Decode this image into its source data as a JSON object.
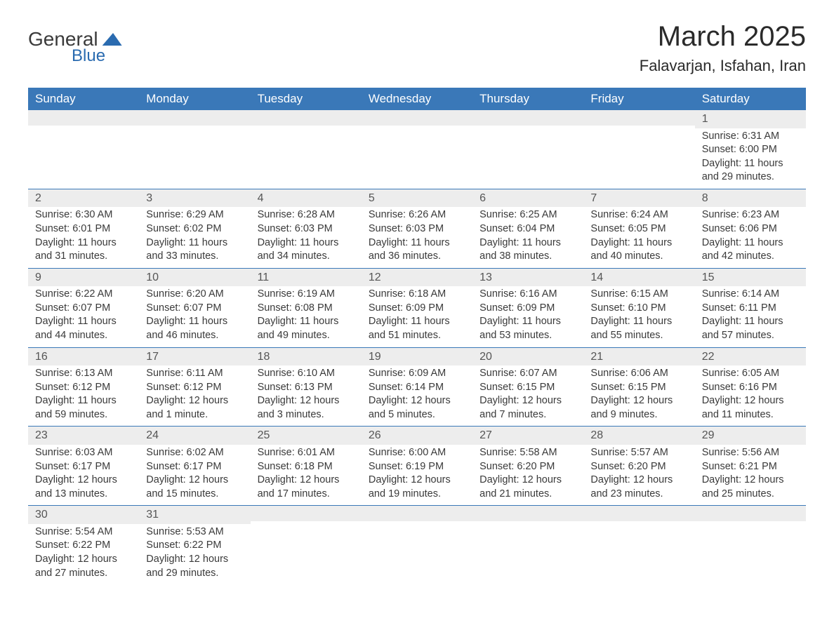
{
  "logo": {
    "top": "General",
    "bottom": "Blue"
  },
  "title": "March 2025",
  "location": "Falavarjan, Isfahan, Iran",
  "day_headers": [
    "Sunday",
    "Monday",
    "Tuesday",
    "Wednesday",
    "Thursday",
    "Friday",
    "Saturday"
  ],
  "colors": {
    "header_bg": "#3a78b8",
    "header_text": "#ffffff",
    "daynum_bg": "#ededed",
    "row_divider": "#3a78b8",
    "text": "#3a3a3a",
    "logo_blue": "#2a6bb0"
  },
  "weeks": [
    [
      {
        "day": "",
        "lines": []
      },
      {
        "day": "",
        "lines": []
      },
      {
        "day": "",
        "lines": []
      },
      {
        "day": "",
        "lines": []
      },
      {
        "day": "",
        "lines": []
      },
      {
        "day": "",
        "lines": []
      },
      {
        "day": "1",
        "lines": [
          "Sunrise: 6:31 AM",
          "Sunset: 6:00 PM",
          "Daylight: 11 hours and 29 minutes."
        ]
      }
    ],
    [
      {
        "day": "2",
        "lines": [
          "Sunrise: 6:30 AM",
          "Sunset: 6:01 PM",
          "Daylight: 11 hours and 31 minutes."
        ]
      },
      {
        "day": "3",
        "lines": [
          "Sunrise: 6:29 AM",
          "Sunset: 6:02 PM",
          "Daylight: 11 hours and 33 minutes."
        ]
      },
      {
        "day": "4",
        "lines": [
          "Sunrise: 6:28 AM",
          "Sunset: 6:03 PM",
          "Daylight: 11 hours and 34 minutes."
        ]
      },
      {
        "day": "5",
        "lines": [
          "Sunrise: 6:26 AM",
          "Sunset: 6:03 PM",
          "Daylight: 11 hours and 36 minutes."
        ]
      },
      {
        "day": "6",
        "lines": [
          "Sunrise: 6:25 AM",
          "Sunset: 6:04 PM",
          "Daylight: 11 hours and 38 minutes."
        ]
      },
      {
        "day": "7",
        "lines": [
          "Sunrise: 6:24 AM",
          "Sunset: 6:05 PM",
          "Daylight: 11 hours and 40 minutes."
        ]
      },
      {
        "day": "8",
        "lines": [
          "Sunrise: 6:23 AM",
          "Sunset: 6:06 PM",
          "Daylight: 11 hours and 42 minutes."
        ]
      }
    ],
    [
      {
        "day": "9",
        "lines": [
          "Sunrise: 6:22 AM",
          "Sunset: 6:07 PM",
          "Daylight: 11 hours and 44 minutes."
        ]
      },
      {
        "day": "10",
        "lines": [
          "Sunrise: 6:20 AM",
          "Sunset: 6:07 PM",
          "Daylight: 11 hours and 46 minutes."
        ]
      },
      {
        "day": "11",
        "lines": [
          "Sunrise: 6:19 AM",
          "Sunset: 6:08 PM",
          "Daylight: 11 hours and 49 minutes."
        ]
      },
      {
        "day": "12",
        "lines": [
          "Sunrise: 6:18 AM",
          "Sunset: 6:09 PM",
          "Daylight: 11 hours and 51 minutes."
        ]
      },
      {
        "day": "13",
        "lines": [
          "Sunrise: 6:16 AM",
          "Sunset: 6:09 PM",
          "Daylight: 11 hours and 53 minutes."
        ]
      },
      {
        "day": "14",
        "lines": [
          "Sunrise: 6:15 AM",
          "Sunset: 6:10 PM",
          "Daylight: 11 hours and 55 minutes."
        ]
      },
      {
        "day": "15",
        "lines": [
          "Sunrise: 6:14 AM",
          "Sunset: 6:11 PM",
          "Daylight: 11 hours and 57 minutes."
        ]
      }
    ],
    [
      {
        "day": "16",
        "lines": [
          "Sunrise: 6:13 AM",
          "Sunset: 6:12 PM",
          "Daylight: 11 hours and 59 minutes."
        ]
      },
      {
        "day": "17",
        "lines": [
          "Sunrise: 6:11 AM",
          "Sunset: 6:12 PM",
          "Daylight: 12 hours and 1 minute."
        ]
      },
      {
        "day": "18",
        "lines": [
          "Sunrise: 6:10 AM",
          "Sunset: 6:13 PM",
          "Daylight: 12 hours and 3 minutes."
        ]
      },
      {
        "day": "19",
        "lines": [
          "Sunrise: 6:09 AM",
          "Sunset: 6:14 PM",
          "Daylight: 12 hours and 5 minutes."
        ]
      },
      {
        "day": "20",
        "lines": [
          "Sunrise: 6:07 AM",
          "Sunset: 6:15 PM",
          "Daylight: 12 hours and 7 minutes."
        ]
      },
      {
        "day": "21",
        "lines": [
          "Sunrise: 6:06 AM",
          "Sunset: 6:15 PM",
          "Daylight: 12 hours and 9 minutes."
        ]
      },
      {
        "day": "22",
        "lines": [
          "Sunrise: 6:05 AM",
          "Sunset: 6:16 PM",
          "Daylight: 12 hours and 11 minutes."
        ]
      }
    ],
    [
      {
        "day": "23",
        "lines": [
          "Sunrise: 6:03 AM",
          "Sunset: 6:17 PM",
          "Daylight: 12 hours and 13 minutes."
        ]
      },
      {
        "day": "24",
        "lines": [
          "Sunrise: 6:02 AM",
          "Sunset: 6:17 PM",
          "Daylight: 12 hours and 15 minutes."
        ]
      },
      {
        "day": "25",
        "lines": [
          "Sunrise: 6:01 AM",
          "Sunset: 6:18 PM",
          "Daylight: 12 hours and 17 minutes."
        ]
      },
      {
        "day": "26",
        "lines": [
          "Sunrise: 6:00 AM",
          "Sunset: 6:19 PM",
          "Daylight: 12 hours and 19 minutes."
        ]
      },
      {
        "day": "27",
        "lines": [
          "Sunrise: 5:58 AM",
          "Sunset: 6:20 PM",
          "Daylight: 12 hours and 21 minutes."
        ]
      },
      {
        "day": "28",
        "lines": [
          "Sunrise: 5:57 AM",
          "Sunset: 6:20 PM",
          "Daylight: 12 hours and 23 minutes."
        ]
      },
      {
        "day": "29",
        "lines": [
          "Sunrise: 5:56 AM",
          "Sunset: 6:21 PM",
          "Daylight: 12 hours and 25 minutes."
        ]
      }
    ],
    [
      {
        "day": "30",
        "lines": [
          "Sunrise: 5:54 AM",
          "Sunset: 6:22 PM",
          "Daylight: 12 hours and 27 minutes."
        ]
      },
      {
        "day": "31",
        "lines": [
          "Sunrise: 5:53 AM",
          "Sunset: 6:22 PM",
          "Daylight: 12 hours and 29 minutes."
        ]
      },
      {
        "day": "",
        "lines": []
      },
      {
        "day": "",
        "lines": []
      },
      {
        "day": "",
        "lines": []
      },
      {
        "day": "",
        "lines": []
      },
      {
        "day": "",
        "lines": []
      }
    ]
  ]
}
